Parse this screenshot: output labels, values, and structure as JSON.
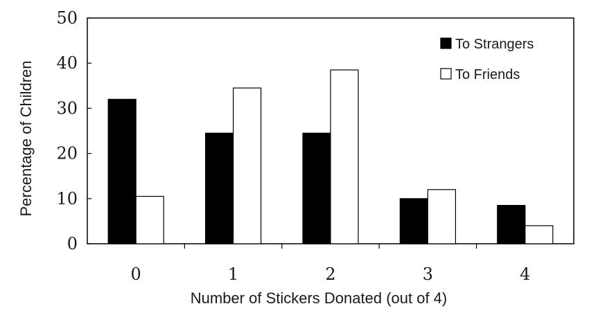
{
  "chart_data": {
    "type": "bar",
    "title": "",
    "xlabel": "Number of Stickers Donated (out of 4)",
    "ylabel": "Percentage of Children",
    "categories": [
      "0",
      "1",
      "2",
      "3",
      "4"
    ],
    "series": [
      {
        "name": "To Strangers",
        "values": [
          32,
          24.5,
          24.5,
          10,
          8.5
        ],
        "color": "#000000"
      },
      {
        "name": "To Friends",
        "values": [
          10.5,
          34.5,
          38.5,
          12,
          4
        ],
        "color": "#ffffff"
      }
    ],
    "ylim": [
      0,
      50
    ],
    "yticks": [
      "0",
      "10",
      "20",
      "30",
      "40",
      "50"
    ],
    "grid": false,
    "legend": "top-right"
  }
}
